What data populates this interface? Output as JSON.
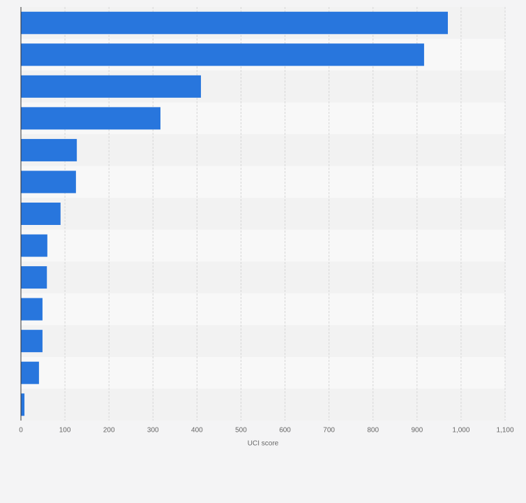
{
  "chart_data": {
    "type": "barh",
    "xlabel": "UCI score",
    "categories": [
      null,
      null,
      null,
      null,
      null,
      null,
      null,
      null,
      null,
      null,
      null,
      null,
      null
    ],
    "values": [
      970,
      916,
      409,
      317,
      127,
      125,
      90,
      60,
      59,
      49,
      49,
      41,
      8
    ],
    "color": "#2876dd",
    "xlim": [
      0,
      1100
    ],
    "xticks": [
      0,
      100,
      200,
      300,
      400,
      500,
      600,
      700,
      800,
      900,
      {
        "value": 1000,
        "label": "1,000"
      },
      {
        "value": 1100,
        "label": "1,100"
      }
    ],
    "grid": true
  }
}
